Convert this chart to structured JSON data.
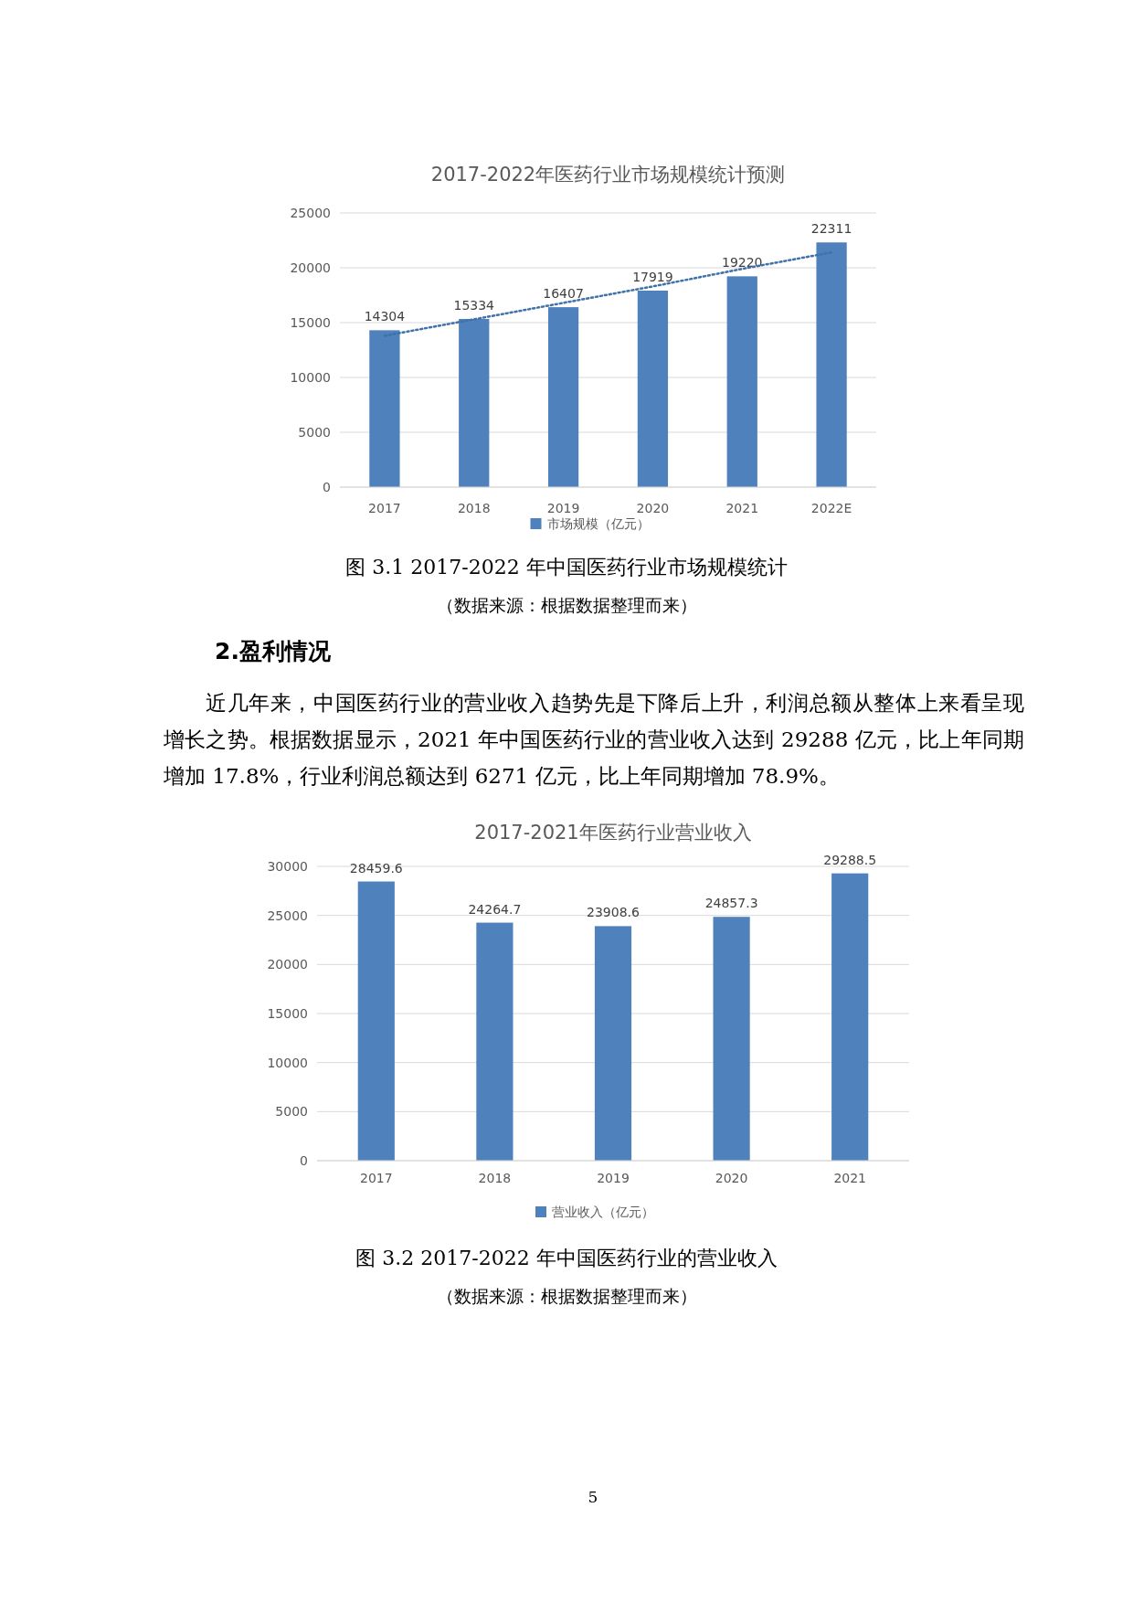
{
  "chart_data": [
    {
      "type": "bar",
      "title": "2017-2022年医药行业市场规模统计预测",
      "categories": [
        "2017",
        "2018",
        "2019",
        "2020",
        "2021",
        "2022E"
      ],
      "series": [
        {
          "name": "市场规模（亿元）",
          "color": "#4f81bd",
          "values": [
            14304,
            15334,
            16407,
            17919,
            19220,
            22311
          ],
          "value_labels": [
            "14304",
            "15334",
            "16407",
            "17919",
            "19220",
            "22311"
          ]
        },
        {
          "type": "line",
          "color": "#3f72a8",
          "line_style": "dotted",
          "values": [
            13800,
            15300,
            16800,
            18300,
            19900,
            21400
          ]
        }
      ],
      "ylim": [
        0,
        25000
      ],
      "yticks": [
        0,
        5000,
        10000,
        15000,
        20000,
        25000
      ],
      "grid": "y",
      "legend": "bottom",
      "annotations": [
        "图 3.1 2017-2022 年中国医药行业市场规模统计",
        "（数据来源：根据数据整理而来）"
      ]
    },
    {
      "type": "bar",
      "title": "2017-2021年医药行业营业收入",
      "categories": [
        "2017",
        "2018",
        "2019",
        "2020",
        "2021"
      ],
      "series": [
        {
          "name": "营业收入（亿元）",
          "color": "#4f81bd",
          "values": [
            28459.6,
            24264.7,
            23908.6,
            24857.3,
            29288.5
          ]
        }
      ],
      "ylim": [
        0,
        30000
      ],
      "yticks": [
        0,
        5000,
        10000,
        15000,
        20000,
        25000,
        30000
      ],
      "grid": "y",
      "legend": "bottom",
      "data_labels": true,
      "annotations": [
        "2.盈利情况",
        "近几年来，中国医药行业的营业收入趋势先是下降后上升，利润总额从整体上来看呈现增长之势。根据数据显示，2021 年中国医药行业的营业收入达到 29288 亿元，比上年同期增加 17.8%，行业利润总额达到 6271 亿元，比上年同期增加 78.9%。",
        "图 3.2 2017-2022 年中国医药行业的营业收入",
        "（数据来源：根据数据整理而来）",
        "5"
      ]
    }
  ]
}
